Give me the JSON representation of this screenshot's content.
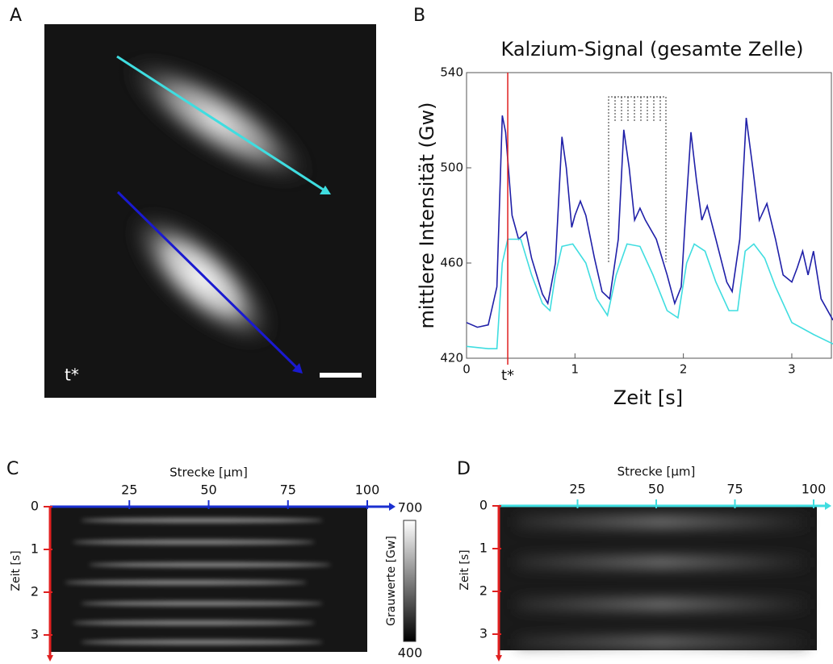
{
  "panel_a": {
    "label": "A",
    "annotation": "t*"
  },
  "chart_data": {
    "type": "line",
    "panel_label": "B",
    "title": "Kalzium-Signal (gesamte Zelle)",
    "x_label": "Zeit [s]",
    "y_label": "mittlere Intensität (Gw)",
    "annotation": "t*",
    "marker_x": 0.38,
    "marker_color": "#e02020",
    "xlim": [
      0,
      3.38
    ],
    "xticks": [
      0,
      1,
      2,
      3
    ],
    "ylim": [
      420,
      540
    ],
    "yticks": [
      420,
      460,
      500,
      540
    ],
    "series": [
      {
        "color": "#1f1fa8",
        "x": [
          0,
          0.1,
          0.2,
          0.28,
          0.33,
          0.36,
          0.42,
          0.48,
          0.55,
          0.6,
          0.7,
          0.75,
          0.82,
          0.88,
          0.92,
          0.97,
          1.0,
          1.05,
          1.1,
          1.18,
          1.25,
          1.32,
          1.4,
          1.45,
          1.5,
          1.55,
          1.6,
          1.65,
          1.75,
          1.85,
          1.92,
          1.98,
          2.02,
          2.07,
          2.12,
          2.17,
          2.22,
          2.3,
          2.4,
          2.45,
          2.52,
          2.58,
          2.64,
          2.7,
          2.77,
          2.85,
          2.92,
          3.0,
          3.05,
          3.1,
          3.15,
          3.2,
          3.27,
          3.38
        ],
        "values": [
          435,
          433,
          434,
          450,
          522,
          515,
          480,
          470,
          473,
          462,
          447,
          443,
          460,
          513,
          500,
          475,
          480,
          486,
          480,
          462,
          448,
          445,
          470,
          516,
          500,
          478,
          483,
          478,
          470,
          455,
          443,
          450,
          480,
          515,
          495,
          478,
          484,
          470,
          452,
          448,
          470,
          521,
          500,
          478,
          485,
          470,
          455,
          452,
          458,
          465,
          455,
          465,
          445,
          436
        ]
      },
      {
        "color": "#3fdde0",
        "x": [
          0,
          0.2,
          0.28,
          0.33,
          0.38,
          0.5,
          0.6,
          0.7,
          0.77,
          0.82,
          0.88,
          0.98,
          1.1,
          1.2,
          1.3,
          1.38,
          1.48,
          1.6,
          1.72,
          1.85,
          1.95,
          2.03,
          2.1,
          2.2,
          2.3,
          2.42,
          2.5,
          2.57,
          2.65,
          2.75,
          2.85,
          3.0,
          3.2,
          3.38
        ],
        "values": [
          425,
          424,
          424,
          460,
          470,
          470,
          455,
          443,
          440,
          455,
          467,
          468,
          460,
          445,
          438,
          455,
          468,
          467,
          455,
          440,
          437,
          460,
          468,
          465,
          452,
          440,
          440,
          465,
          468,
          462,
          450,
          435,
          430,
          426
        ]
      }
    ]
  },
  "panel_c": {
    "label": "C",
    "x_label": "Strecke [µm]",
    "y_label": "Zeit [s]",
    "xlim": [
      0,
      100
    ],
    "xticks": [
      25,
      50,
      75,
      100
    ],
    "ylim": [
      0,
      3.5
    ],
    "yticks": [
      0,
      1,
      2,
      3
    ],
    "x_axis_color": "#1a2fd0",
    "y_axis_color": "#e02020",
    "colorbar": {
      "label": "Grauwerte [Gw]",
      "ticks": [
        700,
        400
      ]
    }
  },
  "panel_d": {
    "label": "D",
    "x_label": "Strecke [µm]",
    "y_label": "Zeit [s]",
    "xlim": [
      0,
      100
    ],
    "xticks": [
      25,
      50,
      75,
      100
    ],
    "ylim": [
      0,
      3.5
    ],
    "yticks": [
      0,
      1,
      2,
      3
    ],
    "x_axis_color": "#3fdde0",
    "y_axis_color": "#e02020"
  }
}
